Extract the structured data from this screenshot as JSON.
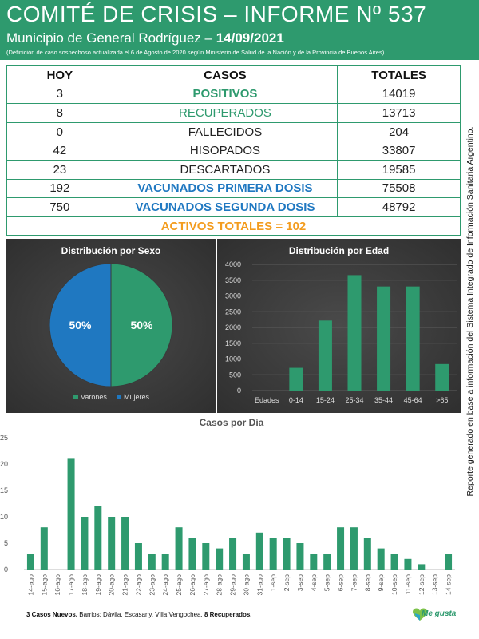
{
  "header": {
    "title": "COMITÉ DE CRISIS – INFORME Nº 537",
    "subtitle": "Municipio de General Rodríguez –",
    "date": "14/09/2021",
    "note": "(Definición de caso sospechoso actualizada el 6 de Agosto de 2020 según Ministerio de Salud de la Nación y de la Provincia de Buenos Aires)"
  },
  "table": {
    "headers": [
      "HOY",
      "CASOS",
      "TOTALES"
    ],
    "rows": [
      {
        "hoy": "3",
        "casos": "POSITIVOS",
        "totales": "14019"
      },
      {
        "hoy": "8",
        "casos": "RECUPERADOS",
        "totales": "13713"
      },
      {
        "hoy": "0",
        "casos": "FALLECIDOS",
        "totales": "204"
      },
      {
        "hoy": "42",
        "casos": "HISOPADOS",
        "totales": "33807"
      },
      {
        "hoy": "23",
        "casos": "DESCARTADOS",
        "totales": "19585"
      },
      {
        "hoy": "192",
        "casos": "VACUNADOS PRIMERA DOSIS",
        "totales": "75508"
      },
      {
        "hoy": "750",
        "casos": "VACUNADOS SEGUNDA DOSIS",
        "totales": "48792"
      }
    ],
    "activos": "ACTIVOS TOTALES = 102"
  },
  "colors": {
    "green": "#2e9a6e",
    "blue": "#1f78c1",
    "orange": "#f39c1e",
    "bar": "#2e9a6e"
  },
  "chart_data": [
    {
      "type": "pie",
      "title": "Distribución por Sexo",
      "labels": [
        "Varones",
        "Mujeres"
      ],
      "values": [
        50,
        50
      ],
      "value_labels": [
        "50%",
        "50%"
      ],
      "legend": "bottom"
    },
    {
      "type": "bar",
      "title": "Distribución por Edad",
      "axis_first_label": "Edades",
      "categories": [
        "0-14",
        "15-24",
        "25-34",
        "35-44",
        "45-64",
        ">65"
      ],
      "values": [
        720,
        2220,
        3660,
        3300,
        3300,
        840
      ],
      "ylim": [
        0,
        4000
      ],
      "yticks": [
        0,
        500,
        1000,
        1500,
        2000,
        2500,
        3000,
        3500,
        4000
      ],
      "grid": true
    },
    {
      "type": "bar",
      "title": "Casos por Día",
      "categories": [
        "14-ago",
        "15-ago",
        "16-ago",
        "17-ago",
        "18-ago",
        "19-ago",
        "20-ago",
        "21-ago",
        "22-ago",
        "23-ago",
        "24-ago",
        "25-ago",
        "26-ago",
        "27-ago",
        "28-ago",
        "29-ago",
        "30-ago",
        "31-ago",
        "1-sep",
        "2-sep",
        "3-sep",
        "4-sep",
        "5-sep",
        "6-sep",
        "7-sep",
        "8-sep",
        "9-sep",
        "10-sep",
        "11-sep",
        "12-sep",
        "13-sep",
        "14-sep"
      ],
      "values": [
        3,
        8,
        0,
        21,
        10,
        12,
        10,
        10,
        5,
        3,
        3,
        8,
        6,
        5,
        4,
        6,
        3,
        7,
        6,
        6,
        5,
        3,
        3,
        8,
        8,
        6,
        4,
        3,
        2,
        1,
        0,
        3
      ],
      "ylim": [
        0,
        25
      ],
      "yticks": [
        0,
        5,
        10,
        15,
        20,
        25
      ],
      "grid": false
    }
  ],
  "footnote": {
    "bold_lead": "3 Casos Nuevos.",
    "text": " Barrios: Dávila, Escasany, Villa Vengochea.",
    "bold_tail": " 8 Recuperados."
  },
  "side_text": "Reporte generado en base a información del Sistema Integrado de Información Sanitaria Argentino.",
  "logo_text": "Me gusta"
}
